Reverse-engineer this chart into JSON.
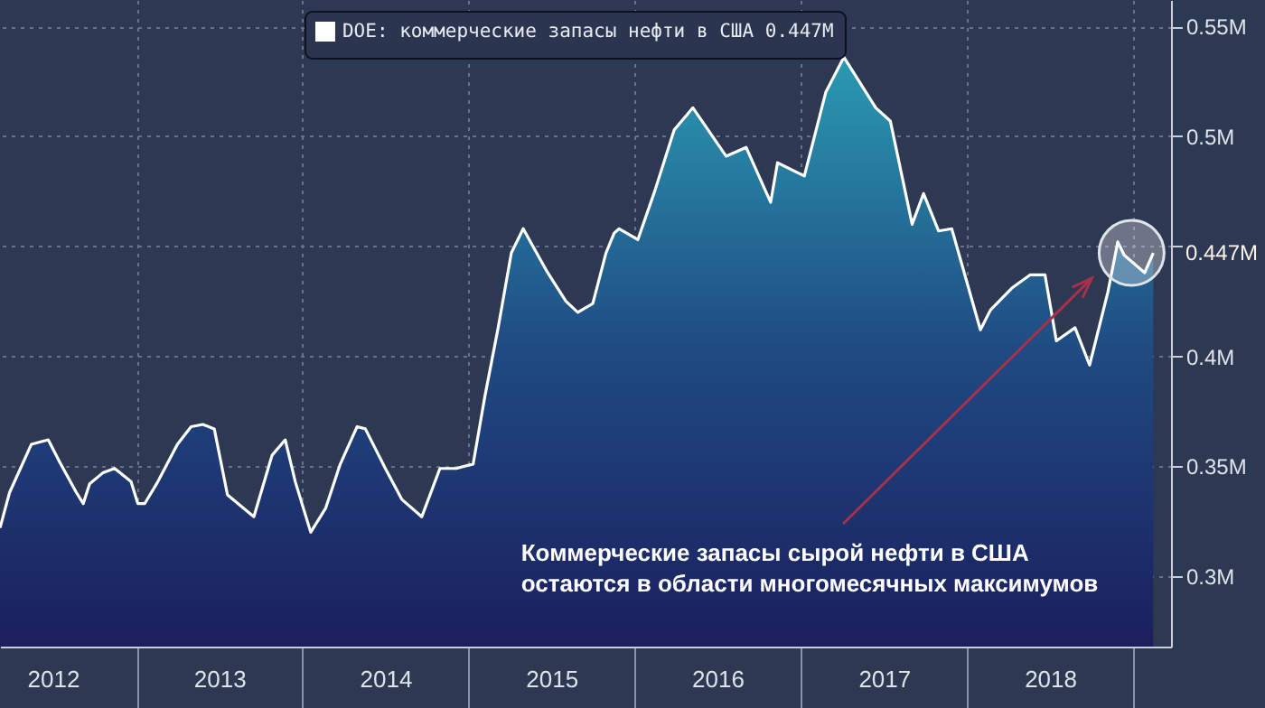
{
  "chart_data": {
    "type": "area",
    "legend": "top",
    "grid": true,
    "xlim": [
      "2012-03-07",
      "2019-03-25"
    ],
    "xticks": [
      {
        "value": "2012-07-01",
        "label": "2012"
      },
      {
        "value": "2013-01-01",
        "label": null
      },
      {
        "value": "2013-07-02",
        "label": "2013"
      },
      {
        "value": "2014-01-01",
        "label": null
      },
      {
        "value": "2014-07-02",
        "label": "2014"
      },
      {
        "value": "2015-01-01",
        "label": null
      },
      {
        "value": "2015-07-02",
        "label": "2015"
      },
      {
        "value": "2016-01-01",
        "label": null
      },
      {
        "value": "2016-07-01",
        "label": "2016"
      },
      {
        "value": "2017-01-01",
        "label": null
      },
      {
        "value": "2017-07-02",
        "label": "2017"
      },
      {
        "value": "2018-01-01",
        "label": null
      },
      {
        "value": "2018-07-02",
        "label": "2018"
      },
      {
        "value": "2019-01-01",
        "label": null
      }
    ],
    "ylim": [
      0.268,
      0.562
    ],
    "yticks": [
      {
        "value": 0.3,
        "label": "0.3M"
      },
      {
        "value": 0.35,
        "label": "0.35M"
      },
      {
        "value": 0.4,
        "label": "0.4M"
      },
      {
        "value": 0.45,
        "label": null
      },
      {
        "value": 0.5,
        "label": "0.5M"
      },
      {
        "value": 0.55,
        "label": "0.55M"
      }
    ],
    "x": [
      "2012-03-07",
      "2012-03-28",
      "2012-05-15",
      "2012-06-21",
      "2012-07-16",
      "2012-08-22",
      "2012-09-06",
      "2012-09-20",
      "2012-10-19",
      "2012-11-14",
      "2012-12-20",
      "2013-01-04",
      "2013-01-19",
      "2013-02-17",
      "2013-04-01",
      "2013-05-01",
      "2013-05-27",
      "2013-06-21",
      "2013-07-20",
      "2013-09-16",
      "2013-10-26",
      "2013-11-24",
      "2013-12-16",
      "2014-01-19",
      "2014-02-21",
      "2014-03-25",
      "2014-05-01",
      "2014-05-19",
      "2014-07-02",
      "2014-08-07",
      "2014-09-20",
      "2014-10-30",
      "2014-12-05",
      "2015-01-11",
      "2015-02-06",
      "2015-03-07",
      "2015-04-05",
      "2015-05-01",
      "2015-06-21",
      "2015-08-03",
      "2015-08-29",
      "2015-10-01",
      "2015-10-30",
      "2015-11-17",
      "2015-11-28",
      "2016-01-08",
      "2016-02-14",
      "2016-03-28",
      "2016-05-08",
      "2016-07-20",
      "2016-09-02",
      "2016-10-26",
      "2016-11-10",
      "2017-01-08",
      "2017-02-24",
      "2017-04-05",
      "2017-06-14",
      "2017-07-16",
      "2017-09-02",
      "2017-09-27",
      "2017-10-30",
      "2017-11-28",
      "2018-01-30",
      "2018-02-21",
      "2018-04-09",
      "2018-05-19",
      "2018-06-21",
      "2018-07-16",
      "2018-08-26",
      "2018-09-27",
      "2018-11-06",
      "2018-11-28",
      "2018-12-12",
      "2019-01-26",
      "2019-02-14"
    ],
    "series": [
      {
        "name": "DOE: коммерческие запасы нефти в США 0.447M",
        "color": "#ffffff",
        "values": [
          0.322,
          0.338,
          0.36,
          0.362,
          0.352,
          0.338,
          0.333,
          0.342,
          0.347,
          0.349,
          0.343,
          0.333,
          0.333,
          0.343,
          0.36,
          0.368,
          0.369,
          0.367,
          0.337,
          0.327,
          0.355,
          0.362,
          0.343,
          0.32,
          0.331,
          0.351,
          0.368,
          0.367,
          0.349,
          0.335,
          0.327,
          0.349,
          0.349,
          0.351,
          0.382,
          0.413,
          0.447,
          0.458,
          0.439,
          0.425,
          0.42,
          0.424,
          0.447,
          0.456,
          0.458,
          0.453,
          0.475,
          0.503,
          0.513,
          0.491,
          0.495,
          0.47,
          0.488,
          0.482,
          0.52,
          0.536,
          0.513,
          0.507,
          0.46,
          0.474,
          0.457,
          0.458,
          0.412,
          0.421,
          0.431,
          0.437,
          0.437,
          0.407,
          0.413,
          0.396,
          0.429,
          0.452,
          0.446,
          0.438,
          0.447
        ]
      }
    ],
    "annotations": [
      {
        "text": "0.447M",
        "x": "2019-02-14",
        "y": 0.447
      },
      "Коммерческие запасы сырой нефти в США\nостаются в области многомесячных максимумов"
    ]
  }
}
